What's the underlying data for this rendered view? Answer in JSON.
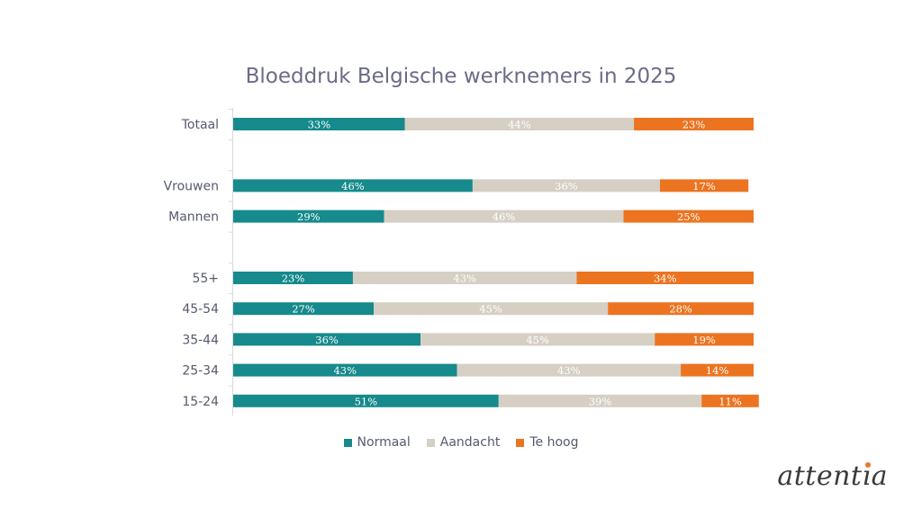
{
  "chart_data": {
    "type": "bar",
    "orientation": "horizontal",
    "stacked": true,
    "title": "Bloeddruk Belgische werknemers in 2025",
    "categories": [
      "Totaal",
      "",
      "Vrouwen",
      "Mannen",
      "",
      "55+",
      "45-54",
      "35-44",
      "25-34",
      "15-24"
    ],
    "series": [
      {
        "name": "Normaal",
        "color": "#168a8c",
        "values": [
          33,
          null,
          46,
          29,
          null,
          23,
          27,
          36,
          43,
          51
        ]
      },
      {
        "name": "Aandacht",
        "color": "#d6cfc4",
        "values": [
          44,
          null,
          36,
          46,
          null,
          43,
          45,
          45,
          43,
          39
        ]
      },
      {
        "name": "Te hoog",
        "color": "#ec7421",
        "values": [
          23,
          null,
          17,
          25,
          null,
          34,
          28,
          19,
          14,
          11
        ]
      }
    ],
    "value_suffix": "%",
    "xlim": [
      0,
      100
    ],
    "grid": false,
    "legend": "bottom"
  },
  "logo": {
    "text": "attentia",
    "accent": "#e8782a"
  }
}
